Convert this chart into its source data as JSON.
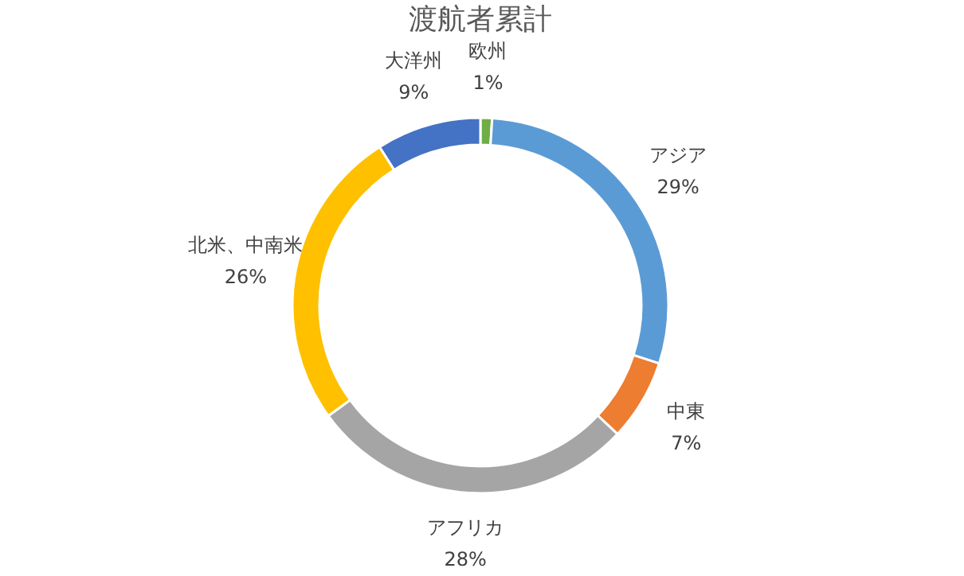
{
  "chart_data": {
    "type": "donut",
    "title": "渡航者累計",
    "categories": [
      "欧州",
      "アジア",
      "中東",
      "アフリカ",
      "北米、中南米",
      "大洋州"
    ],
    "values": [
      1,
      29,
      7,
      28,
      26,
      9
    ],
    "colors": [
      "#70ad47",
      "#5b9bd5",
      "#ed7d31",
      "#a5a5a5",
      "#ffc000",
      "#4472c4"
    ],
    "value_labels": [
      "1%",
      "29%",
      "7%",
      "28%",
      "26%",
      "9%"
    ],
    "legend": false
  }
}
